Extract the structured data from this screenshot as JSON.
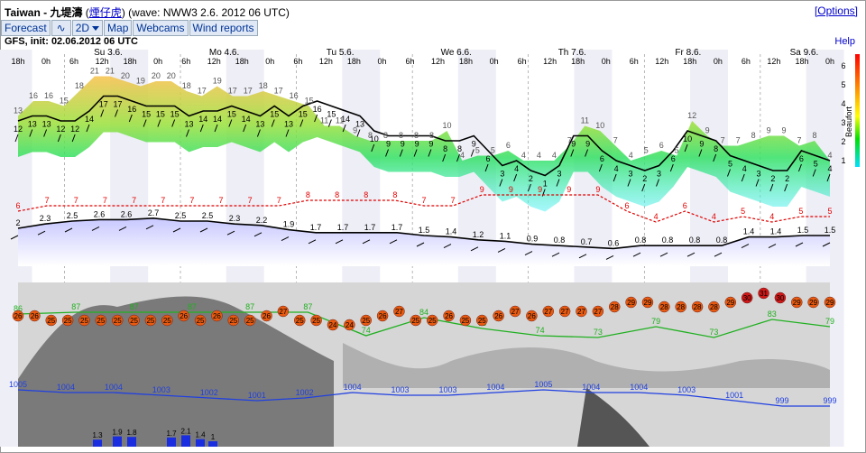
{
  "title": {
    "location": "Taiwan - 九堤濤",
    "spot": "煙仔虎",
    "meta": "(wave: NWW3 2.6. 2012 06 UTC)",
    "options": "[Options]"
  },
  "tabs": [
    {
      "label": "Forecast"
    },
    {
      "label": "∿"
    },
    {
      "label": "2D"
    },
    {
      "label": "Map"
    },
    {
      "label": "Webcams"
    },
    {
      "label": "Wind reports"
    }
  ],
  "init": "GFS, init: 02.06.2012 06 UTC",
  "help": "Help",
  "days": [
    "Su 3.6.",
    "Mo 4.6.",
    "Tu 5.6.",
    "We 6.6.",
    "Th 7.6.",
    "Fr 8.6.",
    "Sa 9.6."
  ],
  "hour_labels": [
    "18h",
    "0h",
    "6h",
    "12h",
    "18h",
    "0h",
    "6h",
    "12h",
    "18h",
    "0h",
    "6h",
    "12h",
    "18h",
    "0h",
    "6h",
    "12h",
    "18h",
    "0h",
    "6h",
    "12h",
    "18h",
    "0h",
    "6h",
    "12h",
    "18h",
    "0h",
    "6h",
    "12h",
    "18h",
    "0h"
  ],
  "beaufort_label": "Beaufort",
  "beaufort_ticks": [
    "6",
    "5",
    "4",
    "3",
    "2",
    "1"
  ],
  "wind_gust_labels": [
    "13",
    "16",
    "16",
    "15",
    "18",
    "21",
    "21",
    "20",
    "19",
    "20",
    "20",
    "18",
    "17",
    "19",
    "17",
    "17",
    "18",
    "17",
    "16",
    "15",
    "11",
    "11",
    "9",
    "8",
    "8",
    "8",
    "8",
    "8",
    "10",
    "4",
    "5",
    "5",
    "6",
    "4",
    "4",
    "4",
    "7",
    "11",
    "10",
    "7",
    "4",
    "5",
    "6",
    "5",
    "12",
    "9",
    "7",
    "7",
    "8",
    "9",
    "9",
    "7",
    "8",
    "4"
  ],
  "wind_speed_labels": [
    "12",
    "13",
    "13",
    "12",
    "12",
    "14",
    "17",
    "17",
    "16",
    "15",
    "15",
    "15",
    "13",
    "14",
    "14",
    "15",
    "14",
    "13",
    "15",
    "13",
    "15",
    "16",
    "15",
    "14",
    "13",
    "10",
    "9",
    "9",
    "9",
    "9",
    "8",
    "8",
    "9",
    "6",
    "3",
    "4",
    "2",
    "1",
    "3",
    "9",
    "9",
    "6",
    "4",
    "3",
    "2",
    "3",
    "6",
    "10",
    "9",
    "8",
    "5",
    "4",
    "3",
    "2",
    "2",
    "6",
    "5",
    "4"
  ],
  "wave_height_labels": [
    "2",
    "2.3",
    "2.5",
    "2.6",
    "2.6",
    "2.7",
    "2.5",
    "2.5",
    "2.3",
    "2.2",
    "1.9",
    "1.7",
    "1.7",
    "1.7",
    "1.7",
    "1.5",
    "1.4",
    "1.2",
    "1.1",
    "0.9",
    "0.8",
    "0.7",
    "0.6",
    "0.8",
    "0.8",
    "0.8",
    "0.8",
    "1.4",
    "1.4",
    "1.5",
    "1.5"
  ],
  "wave_period_labels": [
    "6",
    "7",
    "7",
    "7",
    "7",
    "7",
    "7",
    "7",
    "7",
    "7",
    "8",
    "8",
    "8",
    "8",
    "7",
    "7",
    "9",
    "9",
    "9",
    "9",
    "9",
    "6",
    "4",
    "6",
    "4",
    "5",
    "4",
    "5",
    "5"
  ],
  "temp_labels": [
    "26",
    "26",
    "25",
    "25",
    "25",
    "25",
    "25",
    "25",
    "25",
    "25",
    "26",
    "25",
    "26",
    "25",
    "25",
    "26",
    "27",
    "25",
    "25",
    "24",
    "24",
    "25",
    "26",
    "27",
    "25",
    "25",
    "26",
    "25",
    "25",
    "26",
    "27",
    "26",
    "27",
    "27",
    "27",
    "27",
    "28",
    "29",
    "29",
    "28",
    "28",
    "28",
    "28",
    "29",
    "30",
    "31",
    "30",
    "29",
    "29",
    "29"
  ],
  "humidity_labels": [
    "86",
    "87",
    "87",
    "87",
    "87",
    "87",
    "74",
    "84",
    "78",
    "74",
    "73",
    "79",
    "73",
    "83",
    "79"
  ],
  "pressure_labels": [
    "1005",
    "1004",
    "1004",
    "1003",
    "1002",
    "1001",
    "1002",
    "1004",
    "1003",
    "1003",
    "1004",
    "1005",
    "1004",
    "1004",
    "1003",
    "1001",
    "999",
    "999"
  ],
  "precip_labels": [
    "1.3",
    "1.9",
    "1.8",
    "1.7",
    "2.1",
    "1.4",
    "1"
  ],
  "colors": {
    "wind_line": "#000000",
    "wave_period": "#e00000",
    "humidity": "#20b020",
    "pressure": "#2040e0",
    "precip": "#1a2ee0",
    "temp_circle": "#e85a10",
    "temp_hot": "#d01818"
  }
}
